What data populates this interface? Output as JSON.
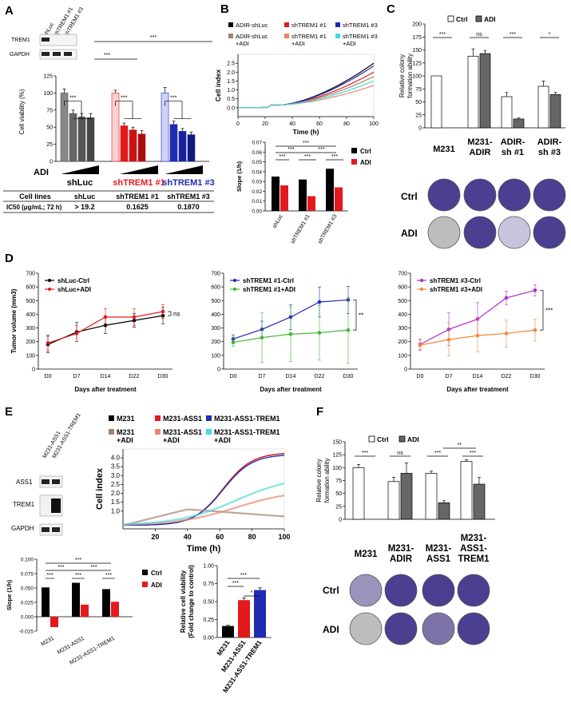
{
  "panels": {
    "A": "A",
    "B": "B",
    "C": "C",
    "D": "D",
    "E": "E",
    "F": "F"
  },
  "colors": {
    "black": "#000000",
    "red": "#e31a1c",
    "blue": "#1f2bb4",
    "brown": "#a48270",
    "salmon": "#e9866a",
    "cyan": "#49d8e0",
    "green": "#3fb534",
    "purple": "#b02ad0",
    "orange": "#f08a33",
    "dish": "#4a3f90"
  },
  "panelA": {
    "blot_lanes": [
      "shLuc",
      "shTREM1 #1",
      "shTREM1 #3"
    ],
    "blot_rows": [
      "TREM1",
      "GAPDH"
    ],
    "groups": [
      "shLuc",
      "shTREM1 #1",
      "shTREM1 #3"
    ],
    "treatment_label": "ADI",
    "sig": [
      "***",
      "***",
      "***",
      "***",
      "***"
    ],
    "table": {
      "headers": [
        "Cell lines",
        "shLuc",
        "shTREM1 #1",
        "shTREM1 #3"
      ],
      "row_label": "IC50 (μg/mL; 72 h)",
      "row_values": [
        "> 19.2",
        "0.1625",
        "0.1870"
      ]
    }
  },
  "panelB": {
    "legend": [
      "ADIR-shLuc",
      "shTREM1 #1",
      "shTREM1 #3",
      "ADIR-shLuc +ADI",
      "shTREM1 #1 +ADI",
      "shTREM1 #3 +ADI"
    ],
    "slope_legend": [
      "Ctrl",
      "ADI"
    ],
    "sig": [
      "***",
      "***",
      "***",
      "***",
      "***",
      "***"
    ]
  },
  "panelC": {
    "legend": [
      "Ctrl",
      "ADI"
    ],
    "sig": [
      "***",
      "ns",
      "***",
      "*"
    ],
    "group_labels": [
      "M231",
      "M231-ADIR",
      "ADIR-sh #1",
      "ADIR-sh #3"
    ],
    "row_labels": [
      "Ctrl",
      "ADI"
    ]
  },
  "panelD": {
    "legends": [
      [
        "shLuc-Ctrl",
        "shLuc+ADI"
      ],
      [
        "shTREM1 #1-Ctrl",
        "shTREM1 #1+ADI"
      ],
      [
        "shTREM1 #3-Ctrl",
        "shTREM1 #3+ADI"
      ]
    ],
    "sig": [
      "ns",
      "**",
      "***"
    ]
  },
  "panelE": {
    "blot_lanes": [
      "M231-ASS1",
      "M231-ASS1-TREM1"
    ],
    "blot_rows": [
      "ASS1",
      "TREM1",
      "GAPDH"
    ],
    "legend": [
      "M231",
      "M231-ASS1",
      "M231-ASS1-TREM1",
      "M231 +ADI",
      "M231-ASS1 +ADI",
      "M231-ASS1-TREM1 +ADI"
    ],
    "slope_legend": [
      "Ctrl",
      "ADI"
    ],
    "sig_slope": [
      "***",
      "***",
      "***",
      "***",
      "***",
      "***"
    ],
    "sig_via": [
      "***",
      "***",
      "*"
    ]
  },
  "panelF": {
    "legend": [
      "Ctrl",
      "ADI"
    ],
    "sig": [
      "***",
      "ns",
      "***",
      "***",
      "**"
    ],
    "group_labels": [
      "M231",
      "M231-ADIR",
      "M231-ASS1",
      "M231-ASS1-TREM1"
    ],
    "row_labels": [
      "Ctrl",
      "ADI"
    ]
  },
  "chart_data": [
    {
      "id": "A-viability",
      "type": "bar",
      "title": "",
      "ylabel": "Cell viability (%)",
      "ylim": [
        0,
        125
      ],
      "yticks": [
        "0",
        "25",
        "50",
        "75",
        "100",
        "125"
      ],
      "groups": [
        "shLuc",
        "shTREM1 #1",
        "shTREM1 #3"
      ],
      "values": [
        [
          100,
          70,
          65,
          64
        ],
        [
          100,
          52,
          46,
          40
        ],
        [
          100,
          54,
          44,
          39
        ]
      ],
      "errors": [
        [
          6,
          5,
          5,
          6
        ],
        [
          4,
          4,
          4,
          5
        ],
        [
          8,
          5,
          4,
          4
        ]
      ]
    },
    {
      "id": "B-cellindex",
      "type": "line",
      "title": "",
      "xlabel": "Time (h)",
      "ylabel": "Cell index",
      "xlim": [
        0,
        100
      ],
      "ylim": [
        -0.5,
        3
      ],
      "xticks": [
        "0",
        "20",
        "40",
        "60",
        "80",
        "100"
      ],
      "yticks": [
        "0.0",
        "0.5",
        "1.0",
        "1.5",
        "2.0",
        "2.5"
      ],
      "series": [
        {
          "name": "ADIR-shLuc",
          "end": 2.5
        },
        {
          "name": "shTREM1 #1",
          "end": 2.0
        },
        {
          "name": "shTREM1 #3",
          "end": 2.35
        },
        {
          "name": "ADIR-shLuc +ADI",
          "end": 1.75
        },
        {
          "name": "shTREM1 #1 +ADI",
          "end": 1.25
        },
        {
          "name": "shTREM1 #3 +ADI",
          "end": 1.5
        }
      ]
    },
    {
      "id": "B-slope",
      "type": "bar",
      "ylabel": "Slope (1/h)",
      "ylim": [
        0,
        0.07
      ],
      "yticks": [
        "0.00",
        "0.01",
        "0.02",
        "0.03",
        "0.04",
        "0.05",
        "0.06",
        "0.07"
      ],
      "categories": [
        "shLuc",
        "shTREM1 #1",
        "shTREM1 #3"
      ],
      "series": [
        {
          "name": "Ctrl",
          "values": [
            0.035,
            0.032,
            0.043
          ]
        },
        {
          "name": "ADI",
          "values": [
            0.026,
            0.015,
            0.024
          ]
        }
      ]
    },
    {
      "id": "C-colony",
      "type": "bar",
      "ylabel": "Relative colony formation ability",
      "ylim": [
        0,
        200
      ],
      "yticks": [
        "0",
        "25",
        "50",
        "75",
        "100",
        "125",
        "150",
        "175",
        "200"
      ],
      "categories": [
        "M231",
        "M231-ADIR",
        "ADIR-sh #1",
        "ADIR-sh #3"
      ],
      "series": [
        {
          "name": "Ctrl",
          "values": [
            100,
            138,
            60,
            80
          ],
          "errors": [
            0,
            14,
            8,
            10
          ]
        },
        {
          "name": "ADI",
          "values": [
            null,
            143,
            17,
            64
          ],
          "errors": [
            0,
            6,
            2,
            4
          ]
        }
      ]
    },
    {
      "id": "D-1",
      "type": "line",
      "xlabel": "Days after treatment",
      "ylabel": "Tumor volume (mm3)",
      "ylim": [
        0,
        700
      ],
      "yticks": [
        "0",
        "100",
        "200",
        "300",
        "400",
        "500",
        "600",
        "700"
      ],
      "categories": [
        "D0",
        "D7",
        "D14",
        "D22",
        "D30"
      ],
      "series": [
        {
          "name": "shLuc-Ctrl",
          "values": [
            180,
            270,
            320,
            355,
            390
          ],
          "errors": [
            60,
            70,
            60,
            50,
            60
          ]
        },
        {
          "name": "shLuc+ADI",
          "values": [
            190,
            260,
            380,
            380,
            420
          ],
          "errors": [
            60,
            60,
            60,
            60,
            50
          ]
        }
      ]
    },
    {
      "id": "D-2",
      "type": "line",
      "xlabel": "Days after treatment",
      "ylim": [
        0,
        700
      ],
      "yticks": [
        "0",
        "100",
        "200",
        "300",
        "400",
        "500",
        "600",
        "700"
      ],
      "categories": [
        "D0",
        "D7",
        "D14",
        "D22",
        "D30"
      ],
      "series": [
        {
          "name": "shTREM1 #1-Ctrl",
          "values": [
            220,
            290,
            380,
            490,
            505
          ],
          "errors": [
            30,
            60,
            90,
            110,
            100
          ]
        },
        {
          "name": "shTREM1 #1+ADI",
          "values": [
            195,
            230,
            255,
            265,
            285
          ],
          "errors": [
            30,
            180,
            200,
            200,
            240
          ]
        }
      ]
    },
    {
      "id": "D-3",
      "type": "line",
      "xlabel": "Days after treatment",
      "ylim": [
        0,
        700
      ],
      "yticks": [
        "0",
        "100",
        "200",
        "300",
        "400",
        "500",
        "600",
        "700"
      ],
      "categories": [
        "D0",
        "D7",
        "D14",
        "D22",
        "D30"
      ],
      "series": [
        {
          "name": "shTREM1 #3-Ctrl",
          "values": [
            180,
            290,
            365,
            520,
            575
          ],
          "errors": [
            40,
            120,
            120,
            50,
            40
          ]
        },
        {
          "name": "shTREM1 #3+ADI",
          "values": [
            175,
            215,
            245,
            260,
            285
          ],
          "errors": [
            40,
            120,
            120,
            100,
            80
          ]
        }
      ]
    },
    {
      "id": "E-cellindex",
      "type": "line",
      "xlabel": "Time (h)",
      "ylabel": "Cell index",
      "xlim": [
        0,
        100
      ],
      "ylim": [
        0,
        4.5
      ],
      "xticks": [
        "20",
        "40",
        "60",
        "80",
        "100"
      ],
      "yticks": [
        "1.0",
        "1.5",
        "2.0",
        "2.5",
        "3.0",
        "3.5",
        "4.0"
      ],
      "series": [
        {
          "name": "M231",
          "end": 4.3
        },
        {
          "name": "M231-ASS1",
          "end": 4.3
        },
        {
          "name": "M231-ASS1-TREM1",
          "end": 4.2
        },
        {
          "name": "M231 +ADI",
          "end": 0.7
        },
        {
          "name": "M231-ASS1 +ADI",
          "end": 2.2
        },
        {
          "name": "M231-ASS1-TREM1 +ADI",
          "end": 3.0
        }
      ]
    },
    {
      "id": "E-slope",
      "type": "bar",
      "ylabel": "Slope (1/h)",
      "ylim": [
        -0.025,
        0.1
      ],
      "yticks": [
        "-0.025",
        "0.000",
        "0.025",
        "0.050",
        "0.075",
        "0.100"
      ],
      "categories": [
        "M231",
        "M231-ASS1",
        "M231-ASS1-TREM1"
      ],
      "series": [
        {
          "name": "Ctrl",
          "values": [
            0.051,
            0.059,
            0.048
          ]
        },
        {
          "name": "ADI",
          "values": [
            -0.018,
            0.021,
            0.026
          ]
        }
      ]
    },
    {
      "id": "E-viability",
      "type": "bar",
      "ylabel": "Relative cell viability (Fold change to control)",
      "ylim": [
        0,
        1.0
      ],
      "yticks": [
        "0.00",
        "0.25",
        "0.50",
        "0.75",
        "1.00"
      ],
      "categories": [
        "M231",
        "M231-ASS1",
        "M231-ASS1-TREM1"
      ],
      "values": [
        0.16,
        0.52,
        0.66
      ],
      "errors": [
        0.01,
        0.03,
        0.03
      ]
    },
    {
      "id": "F-colony",
      "type": "bar",
      "ylabel": "Relative colony formation ability",
      "ylim": [
        0,
        150
      ],
      "yticks": [
        "0",
        "25",
        "50",
        "75",
        "100",
        "125",
        "150"
      ],
      "categories": [
        "M231",
        "M231-ADIR",
        "M231-ASS1",
        "M231-ASS1-TREM1"
      ],
      "series": [
        {
          "name": "Ctrl",
          "values": [
            100,
            73,
            89,
            112
          ],
          "errors": [
            6,
            8,
            4,
            3
          ]
        },
        {
          "name": "ADI",
          "values": [
            null,
            89,
            32,
            68
          ],
          "errors": [
            0,
            20,
            4,
            13
          ]
        }
      ]
    }
  ]
}
